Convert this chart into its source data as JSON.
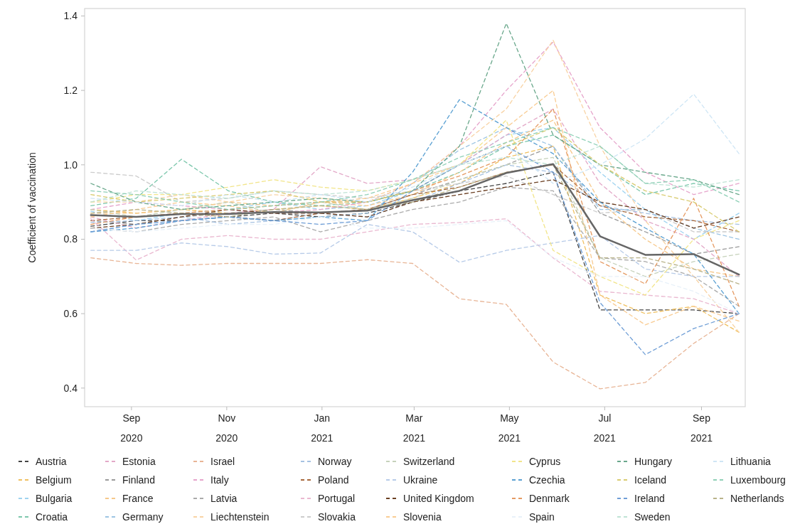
{
  "chart_data": {
    "type": "line",
    "ylabel": "Coefficient of vaccination",
    "x": [
      "2020-08-06",
      "2020-09-04",
      "2020-10-03",
      "2020-11-02",
      "2020-12-01",
      "2020-12-31",
      "2021-01-30",
      "2021-02-28",
      "2021-03-30",
      "2021-04-29",
      "2021-05-29",
      "2021-06-28",
      "2021-07-27",
      "2021-08-27",
      "2021-09-25"
    ],
    "xlim": [
      "2020-08-02",
      "2021-09-29"
    ],
    "xticks": [
      {
        "value": "2020-09-01",
        "label": "Sep 2020"
      },
      {
        "value": "2020-11-01",
        "label": "Nov 2020"
      },
      {
        "value": "2021-01-01",
        "label": "Jan 2021"
      },
      {
        "value": "2021-03-01",
        "label": "Mar 2021"
      },
      {
        "value": "2021-05-01",
        "label": "May 2021"
      },
      {
        "value": "2021-07-01",
        "label": "Jul 2021"
      },
      {
        "value": "2021-09-01",
        "label": "Sep 2021"
      }
    ],
    "ylim": [
      0.35,
      1.42
    ],
    "yticks": [
      0.4,
      0.6,
      0.8,
      {
        "value": 1,
        "label": "1.0"
      },
      1.2,
      1.4
    ],
    "grid": false,
    "legend": "bottom",
    "line_style": "dashed",
    "marker": "none",
    "series": [
      {
        "name": "Austria",
        "color": "#444444",
        "values": [
          0.835,
          0.85,
          0.85,
          0.86,
          0.87,
          0.86,
          0.87,
          0.9,
          0.93,
          0.95,
          0.98,
          0.61,
          0.61,
          0.61,
          0.6
        ]
      },
      {
        "name": "Belgium",
        "color": "#f0c060",
        "values": [
          0.88,
          0.87,
          0.88,
          0.87,
          0.88,
          0.89,
          0.88,
          0.91,
          0.95,
          1.02,
          1.05,
          0.65,
          0.6,
          0.62,
          0.55
        ]
      },
      {
        "name": "Bulgaria",
        "color": "#9fd3f0",
        "values": [
          0.875,
          0.85,
          0.87,
          0.88,
          0.9,
          0.88,
          0.89,
          0.93,
          1.0,
          1.08,
          1.1,
          0.98,
          0.88,
          0.8,
          0.87
        ]
      },
      {
        "name": "Croatia",
        "color": "#7cc7ac",
        "values": [
          0.89,
          0.91,
          1.015,
          0.93,
          0.9,
          0.89,
          0.9,
          0.93,
          0.98,
          1.05,
          1.08,
          1.0,
          0.92,
          0.95,
          0.93
        ]
      },
      {
        "name": "Estonia",
        "color": "#e3a9c8",
        "values": [
          0.86,
          0.83,
          0.85,
          0.87,
          0.88,
          0.995,
          0.95,
          0.96,
          1.0,
          1.08,
          1.15,
          0.95,
          0.85,
          0.8,
          0.7
        ]
      },
      {
        "name": "Finland",
        "color": "#9a9a9a",
        "values": [
          0.85,
          0.84,
          0.86,
          0.87,
          0.88,
          0.87,
          0.88,
          0.92,
          0.96,
          1.0,
          1.05,
          0.87,
          0.82,
          0.76,
          0.78
        ]
      },
      {
        "name": "France",
        "color": "#f6c88a",
        "values": [
          0.87,
          0.87,
          0.88,
          0.9,
          0.89,
          0.9,
          0.89,
          0.92,
          0.98,
          1.06,
          1.12,
          0.9,
          0.8,
          0.72,
          0.7
        ]
      },
      {
        "name": "Germany",
        "color": "#9cc4e3",
        "values": [
          0.82,
          0.84,
          0.85,
          0.86,
          0.85,
          0.86,
          0.87,
          0.95,
          1.04,
          1.1,
          1.05,
          0.88,
          0.88,
          0.83,
          0.8
        ]
      },
      {
        "name": "Israel",
        "color": "#e8b596",
        "values": [
          0.75,
          0.735,
          0.73,
          0.735,
          0.735,
          0.735,
          0.745,
          0.735,
          0.64,
          0.625,
          0.47,
          0.398,
          0.415,
          0.52,
          0.6
        ]
      },
      {
        "name": "Italy",
        "color": "#e6a4cb",
        "values": [
          0.88,
          0.9,
          0.89,
          0.88,
          0.87,
          0.88,
          0.9,
          0.95,
          1.05,
          1.2,
          1.33,
          1.1,
          0.98,
          0.92,
          0.95
        ]
      },
      {
        "name": "Latvia",
        "color": "#aaaaaa",
        "values": [
          0.83,
          0.82,
          0.84,
          0.85,
          0.86,
          0.82,
          0.85,
          0.88,
          0.9,
          0.94,
          0.93,
          0.75,
          0.74,
          0.7,
          0.62
        ]
      },
      {
        "name": "Liechtenstein",
        "color": "#f8d3a4",
        "values": [
          0.9,
          0.9,
          0.92,
          0.9,
          0.92,
          0.91,
          0.9,
          0.95,
          1.05,
          1.15,
          1.335,
          1.05,
          0.85,
          0.7,
          0.55
        ]
      },
      {
        "name": "Norway",
        "color": "#a6c2e2",
        "values": [
          0.845,
          0.85,
          0.86,
          0.84,
          0.85,
          0.87,
          0.86,
          0.9,
          0.95,
          1.0,
          0.98,
          0.89,
          0.87,
          0.85,
          0.84
        ]
      },
      {
        "name": "Poland",
        "color": "#a7683c",
        "values": [
          0.85,
          0.86,
          0.87,
          0.86,
          0.85,
          0.87,
          0.88,
          0.92,
          0.94,
          0.98,
          1.0,
          0.89,
          0.86,
          0.85,
          0.82
        ]
      },
      {
        "name": "Portugal",
        "color": "#eab8d0",
        "values": [
          0.855,
          0.744,
          0.8,
          0.81,
          0.8,
          0.8,
          0.82,
          0.84,
          0.845,
          0.855,
          0.75,
          0.66,
          0.65,
          0.64,
          0.6
        ]
      },
      {
        "name": "Slovakia",
        "color": "#cccccc",
        "values": [
          0.98,
          0.97,
          0.9,
          0.91,
          0.93,
          0.92,
          0.91,
          0.93,
          0.95,
          0.97,
          0.92,
          0.87,
          0.88,
          0.82,
          0.82
        ]
      },
      {
        "name": "Switzerland",
        "color": "#c6d2bb",
        "values": [
          0.88,
          0.86,
          0.88,
          0.9,
          0.87,
          0.9,
          0.88,
          0.91,
          0.96,
          1.0,
          1.02,
          0.75,
          0.7,
          0.74,
          0.76
        ]
      },
      {
        "name": "Ukraine",
        "color": "#b7cbe8",
        "values": [
          0.77,
          0.77,
          0.79,
          0.78,
          0.76,
          0.763,
          0.84,
          0.82,
          0.738,
          0.77,
          0.79,
          0.81,
          0.72,
          0.7,
          0.7
        ]
      },
      {
        "name": "United Kingdom",
        "color": "#6b3f22",
        "values": [
          0.83,
          0.84,
          0.86,
          0.88,
          0.87,
          0.87,
          0.86,
          0.9,
          0.92,
          0.94,
          0.96,
          0.9,
          0.88,
          0.83,
          0.86
        ]
      },
      {
        "name": "Slovenia",
        "color": "#f9cc93",
        "values": [
          0.86,
          0.88,
          0.9,
          0.89,
          0.87,
          0.9,
          0.91,
          0.95,
          1.0,
          1.1,
          1.2,
          0.65,
          0.57,
          0.62,
          0.58
        ]
      },
      {
        "name": "Cyprus",
        "color": "#f2e58a",
        "values": [
          0.9,
          0.92,
          0.92,
          0.94,
          0.96,
          0.94,
          0.93,
          0.96,
          1.0,
          1.12,
          0.77,
          0.7,
          0.65,
          0.8,
          0.85
        ]
      },
      {
        "name": "Czechia",
        "color": "#5aa0d2",
        "values": [
          0.82,
          0.83,
          0.85,
          0.86,
          0.85,
          0.86,
          0.85,
          0.98,
          1.175,
          1.1,
          1.03,
          0.9,
          0.83,
          0.76,
          0.6
        ]
      },
      {
        "name": "Denmark",
        "color": "#e59a62",
        "values": [
          0.84,
          0.86,
          0.87,
          0.88,
          0.89,
          0.9,
          0.9,
          0.93,
          0.97,
          1.02,
          1.15,
          0.74,
          0.68,
          0.91,
          0.62
        ]
      },
      {
        "name": "Spain",
        "color": "#e8f1f9",
        "values": [
          0.83,
          0.82,
          0.83,
          0.84,
          0.84,
          0.86,
          0.83,
          0.83,
          0.84,
          0.85,
          0.75,
          0.7,
          0.7,
          0.66,
          0.6
        ]
      },
      {
        "name": "Hungary",
        "color": "#6aa88c",
        "values": [
          0.95,
          0.9,
          0.88,
          0.89,
          0.9,
          0.91,
          0.9,
          0.93,
          1.05,
          1.38,
          1.08,
          1.0,
          0.98,
          0.96,
          0.92
        ]
      },
      {
        "name": "Iceland",
        "color": "#d9cc72",
        "values": [
          0.92,
          0.9,
          0.91,
          0.92,
          0.93,
          0.9,
          0.9,
          0.93,
          1.0,
          1.05,
          1.1,
          1.0,
          0.93,
          0.9,
          0.82
        ]
      },
      {
        "name": "Ireland",
        "color": "#6f9ed6",
        "values": [
          0.82,
          0.84,
          0.85,
          0.86,
          0.85,
          0.84,
          0.85,
          0.93,
          1.0,
          1.05,
          0.98,
          0.63,
          0.49,
          0.56,
          0.6
        ]
      },
      {
        "name": "Sweden",
        "color": "#bfe3d5",
        "values": [
          0.9,
          0.93,
          0.92,
          0.91,
          0.93,
          0.92,
          0.93,
          0.96,
          1.0,
          1.02,
          1.0,
          1.05,
          0.95,
          0.94,
          0.96
        ]
      },
      {
        "name": "Lithuania",
        "color": "#cfe6f5",
        "values": [
          0.91,
          0.9,
          0.89,
          0.92,
          0.9,
          0.92,
          0.9,
          0.94,
          1.0,
          1.05,
          0.95,
          1.0,
          1.07,
          1.19,
          1.03
        ]
      },
      {
        "name": "Luxembourg",
        "color": "#8fd0b7",
        "values": [
          0.93,
          0.92,
          0.9,
          0.88,
          0.89,
          0.9,
          0.92,
          0.96,
          1.02,
          1.06,
          1.1,
          1.05,
          0.95,
          0.96,
          0.9
        ]
      },
      {
        "name": "Netherlands",
        "color": "#b9b38a",
        "values": [
          0.87,
          0.88,
          0.87,
          0.86,
          0.88,
          0.89,
          0.88,
          0.9,
          0.94,
          0.98,
          1.0,
          0.75,
          0.75,
          0.72,
          0.68
        ]
      },
      {
        "color": "#666666",
        "line_style": "solid",
        "values": [
          0.865,
          0.86,
          0.868,
          0.868,
          0.873,
          0.872,
          0.877,
          0.905,
          0.93,
          0.978,
          1.002,
          0.808,
          0.758,
          0.76,
          0.705
        ]
      }
    ]
  }
}
